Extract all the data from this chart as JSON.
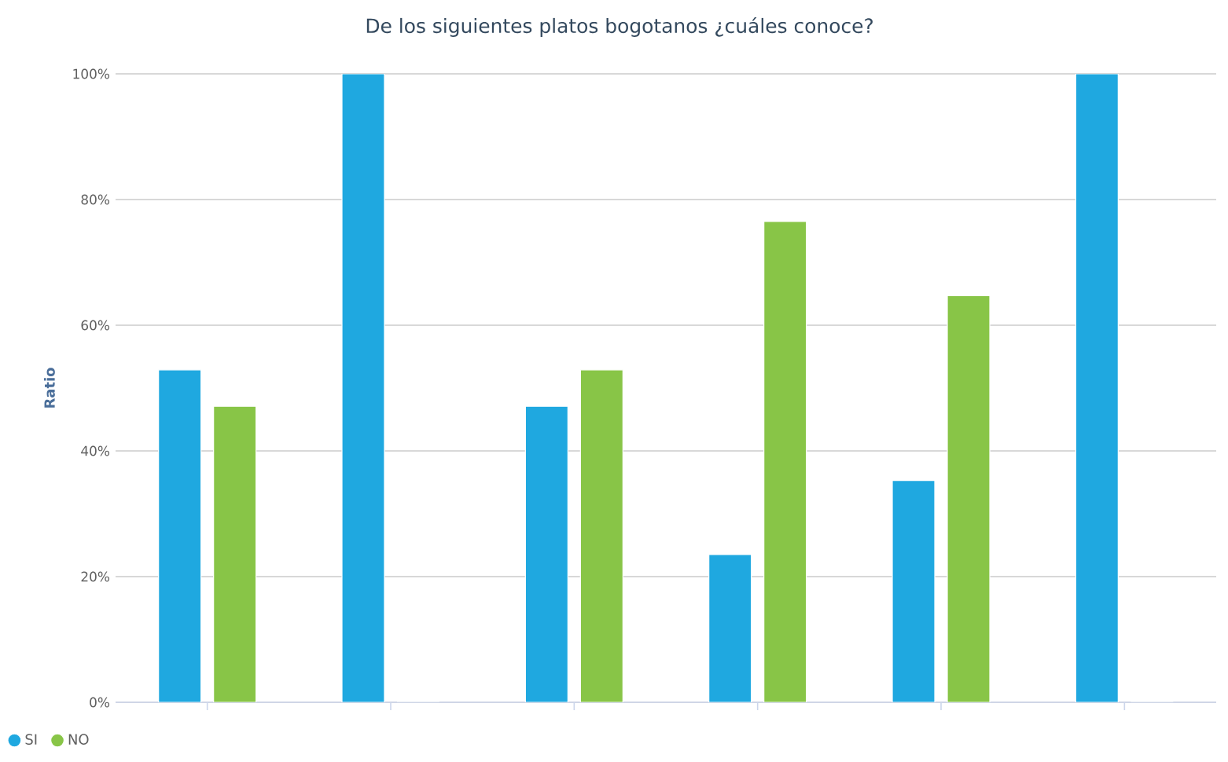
{
  "chart_data": {
    "type": "bar",
    "title": "De los siguientes platos bogotanos ¿cuáles conoce?",
    "ylabel": "Ratio",
    "categories": [
      null,
      null,
      null,
      null,
      null,
      null
    ],
    "series": [
      {
        "name": "SI",
        "color": "#1fa8e0",
        "values": [
          52.9,
          100,
          47.1,
          23.5,
          35.3,
          100
        ]
      },
      {
        "name": "NO",
        "color": "#88c547",
        "values": [
          47.1,
          0,
          52.9,
          76.5,
          64.7,
          0
        ]
      }
    ],
    "ylim": [
      0,
      100
    ],
    "yticks": [
      {
        "value": 0,
        "label": "0%"
      },
      {
        "value": 20,
        "label": "20%"
      },
      {
        "value": 40,
        "label": "40%"
      },
      {
        "value": 60,
        "label": "60%"
      },
      {
        "value": 80,
        "label": "80%"
      },
      {
        "value": 100,
        "label": "100%"
      }
    ],
    "grid": "y",
    "legend": "bottom left"
  }
}
